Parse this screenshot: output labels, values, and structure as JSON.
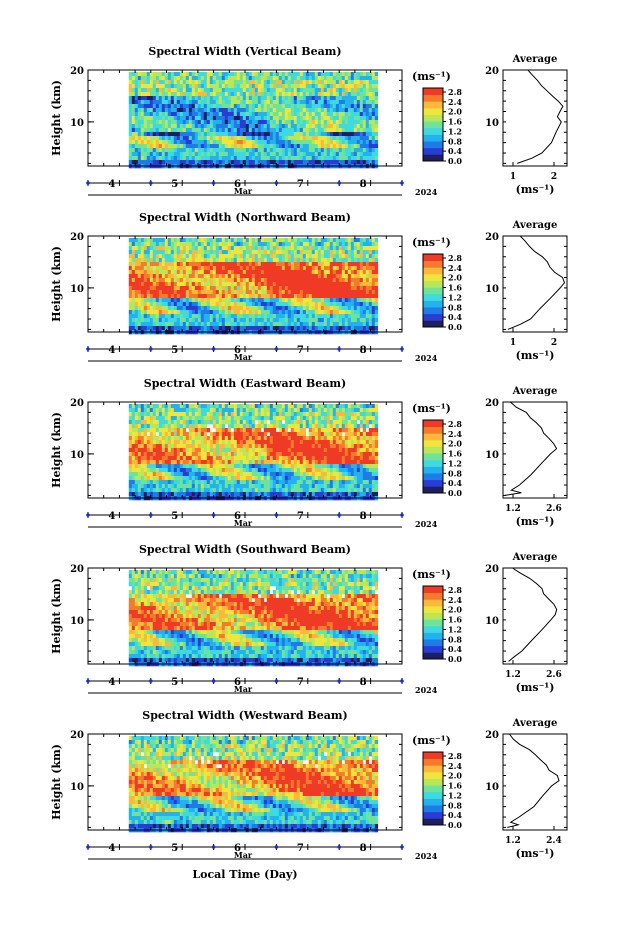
{
  "chart_data": {
    "type": "heatmap",
    "x_axis": {
      "label": "Local Time (Day)",
      "month_label": "Mar",
      "year_label": "2024",
      "ticks": [
        "4",
        "5",
        "6",
        "7",
        "8"
      ],
      "range_days": [
        3.5,
        8.5
      ],
      "data_range_days": [
        4.15,
        8.1
      ]
    },
    "y_axis": {
      "label": "Height (km)",
      "ticks": [
        "20",
        "10"
      ],
      "range_km": [
        1.5,
        20
      ]
    },
    "colorbar": {
      "unit": "(ms⁻¹)",
      "ticks_standard": [
        "0.0",
        "0.4",
        "0.8",
        "1.2",
        "1.6",
        "2.0",
        "2.4",
        "2.8"
      ],
      "colors": [
        "#1e1f5e",
        "#2a3bd6",
        "#1f7be6",
        "#22b3ee",
        "#3fd9e0",
        "#6de39c",
        "#b8e85a",
        "#f0e53a",
        "#fbb83a",
        "#f47a2c",
        "#ef3a26"
      ]
    },
    "panels": [
      {
        "title": "Spectral Width (Vertical Beam)",
        "cbar_ticks": [
          "2.8",
          "2.4",
          "2.0",
          "1.6",
          "1.2",
          "0.8",
          "0.4",
          "0.0"
        ],
        "profile_title": "Average",
        "profile_xticks": [
          "1",
          "2"
        ],
        "profile_xrange": [
          0.5,
          2.3
        ],
        "profile_unit": "(ms⁻¹)",
        "profile_h": [
          2,
          3,
          4,
          6,
          8,
          10,
          11,
          12,
          13,
          14,
          15,
          16,
          17,
          18,
          19,
          20
        ],
        "profile_v": [
          0.9,
          1.3,
          1.6,
          1.85,
          2.0,
          2.15,
          2.05,
          2.1,
          2.2,
          2.05,
          1.9,
          1.75,
          1.6,
          1.45,
          1.35,
          1.2
        ],
        "intensity": 0.55
      },
      {
        "title": "Spectral Width (Northward Beam)",
        "cbar_ticks": [
          "2.8",
          "2.4",
          "2.0",
          "1.6",
          "1.2",
          "0.8",
          "0.4",
          "0.0"
        ],
        "profile_title": "Average",
        "profile_xticks": [
          "1",
          "2"
        ],
        "profile_xrange": [
          1.0,
          3.6
        ],
        "profile_unit": "(ms⁻¹)",
        "profile_h": [
          2,
          3,
          4,
          6,
          8,
          10,
          11,
          12,
          13,
          14,
          15,
          16,
          17,
          18,
          19,
          20
        ],
        "profile_v": [
          1.2,
          1.7,
          2.1,
          2.5,
          2.9,
          3.3,
          3.5,
          3.4,
          3.1,
          2.9,
          2.8,
          2.6,
          2.3,
          2.1,
          1.9,
          1.7
        ],
        "intensity": 0.85
      },
      {
        "title": "Spectral Width (Eastward Beam)",
        "cbar_ticks": [
          "2.8",
          "2.4",
          "2.0",
          "1.6",
          "1.2",
          "0.8",
          "0.4",
          "0.0"
        ],
        "profile_title": "Average",
        "profile_xticks": [
          "1.2",
          "2.6"
        ],
        "profile_xrange": [
          1.1,
          2.8
        ],
        "profile_unit": "(ms⁻¹)",
        "profile_h": [
          2,
          2.5,
          3,
          4,
          6,
          8,
          10,
          11,
          12,
          13,
          14,
          15,
          16,
          17,
          18,
          19,
          20
        ],
        "profile_v": [
          1.15,
          1.6,
          1.3,
          1.55,
          1.85,
          2.1,
          2.35,
          2.5,
          2.45,
          2.3,
          2.2,
          2.1,
          2.0,
          1.85,
          1.7,
          1.45,
          1.3
        ],
        "intensity": 0.8
      },
      {
        "title": "Spectral Width (Southward Beam)",
        "cbar_ticks": [
          "2.8",
          "2.4",
          "2.0",
          "1.6",
          "1.2",
          "0.8",
          "0.4",
          "0.0"
        ],
        "profile_title": "Average",
        "profile_xticks": [
          "1.2",
          "2.6"
        ],
        "profile_xrange": [
          1.1,
          2.8
        ],
        "profile_unit": "(ms⁻¹)",
        "profile_h": [
          2,
          3,
          4,
          6,
          8,
          10,
          11,
          12,
          13,
          14,
          15,
          16,
          17,
          18,
          19,
          20
        ],
        "profile_v": [
          1.25,
          1.4,
          1.6,
          1.85,
          2.1,
          2.35,
          2.5,
          2.55,
          2.45,
          2.3,
          2.2,
          2.15,
          2.0,
          1.8,
          1.55,
          1.35
        ],
        "intensity": 0.82
      },
      {
        "title": "Spectral Width (Westward Beam)",
        "cbar_ticks": [
          "2.8",
          "2.4",
          "2.0",
          "1.6",
          "1.2",
          "0.8",
          "0.4",
          "0.0"
        ],
        "profile_title": "Average",
        "profile_xticks": [
          "1.2",
          "2.4"
        ],
        "profile_xrange": [
          1.1,
          2.6
        ],
        "profile_unit": "(ms⁻¹)",
        "profile_h": [
          2,
          2.5,
          3,
          4,
          6,
          8,
          10,
          11,
          12,
          13,
          14,
          15,
          16,
          17,
          18,
          19,
          20
        ],
        "profile_v": [
          1.2,
          1.45,
          1.3,
          1.5,
          1.8,
          2.0,
          2.25,
          2.4,
          2.35,
          2.2,
          2.1,
          2.0,
          1.85,
          1.7,
          1.5,
          1.35,
          1.25
        ],
        "intensity": 0.78
      }
    ]
  }
}
